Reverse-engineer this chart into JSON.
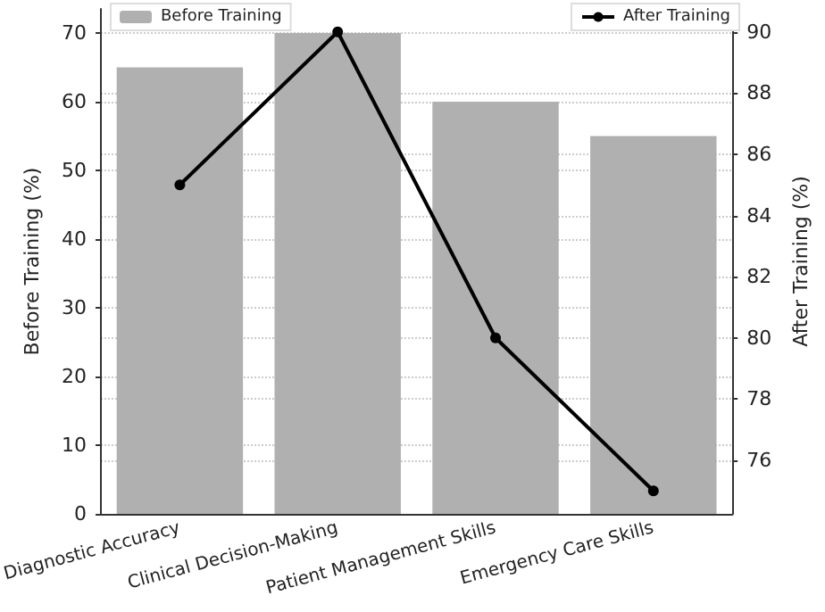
{
  "chart_data": {
    "type": "bar",
    "categories": [
      "Diagnostic Accuracy",
      "Clinical Decision-Making",
      "Patient Management Skills",
      "Emergency Care Skills"
    ],
    "ylabel": "Before Training (%)",
    "y2label": "After Training (%)",
    "series": [
      {
        "name": "Before Training",
        "color": "#b0b0b0",
        "values": [
          65,
          70,
          60,
          55
        ]
      },
      {
        "name": "After Training",
        "type": "line",
        "axis": "y2",
        "color": "#000000",
        "marker": "circle",
        "values": [
          85,
          90,
          80,
          75
        ]
      }
    ],
    "ylim": [
      0,
      73.5
    ],
    "yticks": [
      0,
      10,
      20,
      30,
      40,
      50,
      60,
      70
    ],
    "y2lim": [
      74.25,
      90.75
    ],
    "y2ticks": [
      76,
      78,
      80,
      82,
      84,
      86,
      88,
      90
    ],
    "grid": "y",
    "legend": "top"
  }
}
